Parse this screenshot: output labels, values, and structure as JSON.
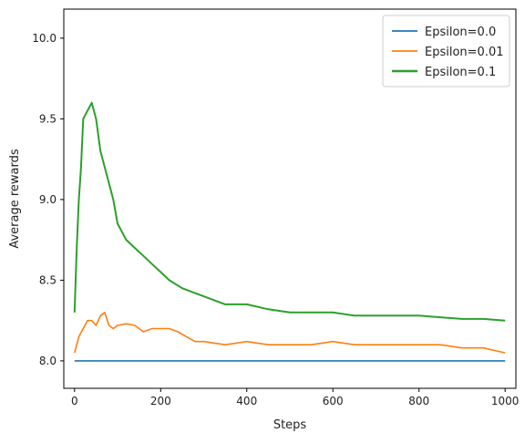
{
  "chart_data": {
    "type": "line",
    "title": "",
    "xlabel": "Steps",
    "ylabel": "Average rewards",
    "xlim": [
      -25,
      1025
    ],
    "ylim": [
      7.83,
      10.18
    ],
    "x_ticks": [
      0,
      200,
      400,
      600,
      800,
      1000
    ],
    "y_ticks": [
      8.0,
      8.5,
      9.0,
      9.5,
      10.0
    ],
    "y_tick_labels": [
      "8.0",
      "8.5",
      "9.0",
      "9.5",
      "10.0"
    ],
    "grid": false,
    "legend_position": "top-right",
    "series": [
      {
        "name": "Epsilon=0.0",
        "color": "#1f77b4",
        "x": [
          0,
          1000
        ],
        "y": [
          8.0,
          8.0
        ]
      },
      {
        "name": "Epsilon=0.01",
        "color": "#ff7f0e",
        "x": [
          0,
          10,
          20,
          30,
          40,
          50,
          60,
          70,
          80,
          90,
          100,
          120,
          140,
          160,
          180,
          200,
          220,
          240,
          260,
          280,
          300,
          350,
          400,
          450,
          500,
          550,
          600,
          650,
          700,
          750,
          800,
          850,
          900,
          950,
          1000
        ],
        "y": [
          8.05,
          8.15,
          8.2,
          8.25,
          8.25,
          8.22,
          8.28,
          8.3,
          8.22,
          8.2,
          8.22,
          8.23,
          8.22,
          8.18,
          8.2,
          8.2,
          8.2,
          8.18,
          8.15,
          8.12,
          8.12,
          8.1,
          8.12,
          8.1,
          8.1,
          8.1,
          8.12,
          8.1,
          8.1,
          8.1,
          8.1,
          8.1,
          8.08,
          8.08,
          8.05
        ]
      },
      {
        "name": "Epsilon=0.1",
        "color": "#2ca02c",
        "x": [
          0,
          5,
          10,
          15,
          20,
          30,
          40,
          50,
          60,
          70,
          80,
          90,
          100,
          120,
          140,
          160,
          180,
          200,
          220,
          250,
          280,
          300,
          350,
          400,
          450,
          500,
          550,
          600,
          650,
          700,
          750,
          800,
          850,
          900,
          950,
          1000
        ],
        "y": [
          8.3,
          8.7,
          9.0,
          9.2,
          9.5,
          9.55,
          9.6,
          9.5,
          9.3,
          9.2,
          9.1,
          9.0,
          8.85,
          8.75,
          8.7,
          8.65,
          8.6,
          8.55,
          8.5,
          8.45,
          8.42,
          8.4,
          8.35,
          8.35,
          8.32,
          8.3,
          8.3,
          8.3,
          8.28,
          8.28,
          8.28,
          8.28,
          8.27,
          8.26,
          8.26,
          8.25
        ]
      }
    ]
  }
}
